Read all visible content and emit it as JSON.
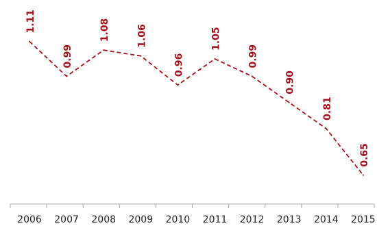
{
  "chart_data": {
    "type": "line",
    "title": "",
    "xlabel": "",
    "ylabel": "",
    "categories": [
      "2006",
      "2007",
      "2008",
      "2009",
      "2010",
      "2011",
      "2012",
      "2013",
      "2014",
      "2015"
    ],
    "series": [
      {
        "values": [
          1.11,
          0.99,
          1.08,
          1.06,
          0.96,
          1.05,
          0.99,
          0.9,
          0.81,
          0.65
        ],
        "labels": [
          "1.11",
          "0.99",
          "1.08",
          "1.06",
          "0.96",
          "1.05",
          "0.99",
          "0.90",
          "0.81",
          "0.65"
        ],
        "color": "#a3121c",
        "line_style": "dashed"
      }
    ],
    "ylim": [
      0.6,
      1.13
    ],
    "legend": "none",
    "grid": false,
    "axis_color": "#aaaaaa"
  }
}
